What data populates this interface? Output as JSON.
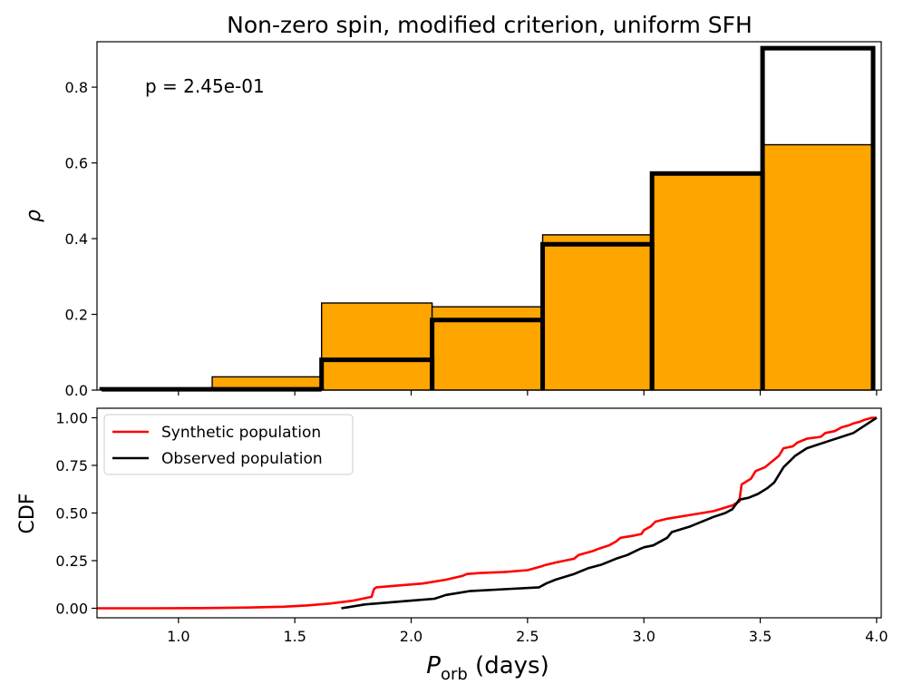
{
  "chart_data": [
    {
      "type": "bar",
      "title": "Non-zero spin, modified criterion, uniform SFH",
      "ylabel": "ρ",
      "xlim": [
        0.65,
        4.02
      ],
      "ylim": [
        0,
        0.92
      ],
      "yticks": [
        "0.0",
        "0.2",
        "0.4",
        "0.6",
        "0.8"
      ],
      "annotation": "p = 2.45e-01",
      "colors": {
        "fill": "#FFA500",
        "edge": "#000000"
      },
      "synthetic_bins": [
        {
          "x0": 0.67,
          "x1": 1.145,
          "value": 0.002
        },
        {
          "x0": 1.145,
          "x1": 1.615,
          "value": 0.035
        },
        {
          "x0": 1.615,
          "x1": 2.09,
          "value": 0.23
        },
        {
          "x0": 2.09,
          "x1": 2.565,
          "value": 0.22
        },
        {
          "x0": 2.565,
          "x1": 3.035,
          "value": 0.41
        },
        {
          "x0": 3.035,
          "x1": 3.51,
          "value": 0.57
        },
        {
          "x0": 3.51,
          "x1": 3.985,
          "value": 0.648
        }
      ],
      "observed_bins": [
        {
          "x0": 0.67,
          "x1": 1.145,
          "value": 0.002
        },
        {
          "x0": 1.145,
          "x1": 1.615,
          "value": 0.002
        },
        {
          "x0": 1.615,
          "x1": 2.09,
          "value": 0.08
        },
        {
          "x0": 2.09,
          "x1": 2.565,
          "value": 0.185
        },
        {
          "x0": 2.565,
          "x1": 3.035,
          "value": 0.385
        },
        {
          "x0": 3.035,
          "x1": 3.51,
          "value": 0.572
        },
        {
          "x0": 3.51,
          "x1": 3.985,
          "value": 0.903
        }
      ]
    },
    {
      "type": "line",
      "xlabel": "P",
      "xlabel_sub": "orb",
      "xlabel_suffix": " (days)",
      "ylabel": "CDF",
      "xlim": [
        0.65,
        4.02
      ],
      "ylim": [
        -0.05,
        1.05
      ],
      "xticks": [
        "1.0",
        "1.5",
        "2.0",
        "2.5",
        "3.0",
        "3.5",
        "4.0"
      ],
      "yticks": [
        "0.00",
        "0.25",
        "0.50",
        "0.75",
        "1.00"
      ],
      "legend_position": "upper-left",
      "series": [
        {
          "name": "Synthetic population",
          "color": "#FF0000",
          "x": [
            0.65,
            0.9,
            1.1,
            1.3,
            1.45,
            1.55,
            1.65,
            1.75,
            1.83,
            1.84,
            1.85,
            1.95,
            2.05,
            2.15,
            2.22,
            2.24,
            2.3,
            2.4,
            2.5,
            2.56,
            2.57,
            2.62,
            2.7,
            2.72,
            2.78,
            2.8,
            2.85,
            2.88,
            2.9,
            2.95,
            2.99,
            3.0,
            3.03,
            3.05,
            3.1,
            3.2,
            3.3,
            3.38,
            3.41,
            3.42,
            3.46,
            3.48,
            3.52,
            3.55,
            3.58,
            3.6,
            3.64,
            3.66,
            3.7,
            3.76,
            3.78,
            3.82,
            3.85,
            3.88,
            3.9,
            3.93,
            3.95,
            3.98,
            4.0
          ],
          "y": [
            0.0,
            0.0,
            0.001,
            0.004,
            0.008,
            0.015,
            0.025,
            0.04,
            0.06,
            0.1,
            0.11,
            0.12,
            0.13,
            0.15,
            0.17,
            0.18,
            0.185,
            0.19,
            0.2,
            0.22,
            0.225,
            0.24,
            0.26,
            0.28,
            0.3,
            0.31,
            0.33,
            0.35,
            0.37,
            0.38,
            0.39,
            0.41,
            0.43,
            0.455,
            0.47,
            0.49,
            0.51,
            0.54,
            0.56,
            0.65,
            0.68,
            0.72,
            0.74,
            0.77,
            0.8,
            0.84,
            0.85,
            0.87,
            0.89,
            0.9,
            0.92,
            0.93,
            0.95,
            0.96,
            0.97,
            0.98,
            0.99,
            1.0,
            1.0
          ]
        },
        {
          "name": "Observed population",
          "color": "#000000",
          "x": [
            1.7,
            1.8,
            1.9,
            2.0,
            2.1,
            2.15,
            2.25,
            2.4,
            2.55,
            2.58,
            2.62,
            2.7,
            2.76,
            2.82,
            2.88,
            2.93,
            2.98,
            3.0,
            3.04,
            3.1,
            3.12,
            3.2,
            3.3,
            3.35,
            3.38,
            3.41,
            3.45,
            3.49,
            3.53,
            3.56,
            3.6,
            3.65,
            3.7,
            3.75,
            3.8,
            3.85,
            3.9,
            3.95,
            4.0
          ],
          "y": [
            0.0,
            0.02,
            0.03,
            0.04,
            0.05,
            0.07,
            0.09,
            0.1,
            0.11,
            0.13,
            0.15,
            0.18,
            0.21,
            0.23,
            0.26,
            0.28,
            0.31,
            0.32,
            0.33,
            0.37,
            0.4,
            0.43,
            0.48,
            0.5,
            0.52,
            0.57,
            0.58,
            0.6,
            0.63,
            0.66,
            0.74,
            0.8,
            0.84,
            0.86,
            0.88,
            0.9,
            0.92,
            0.96,
            1.0
          ]
        }
      ]
    }
  ]
}
